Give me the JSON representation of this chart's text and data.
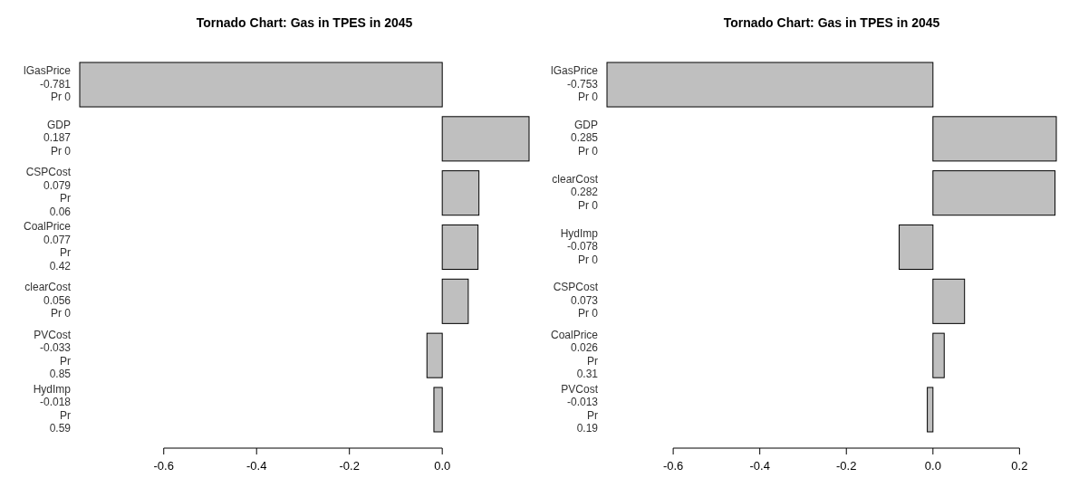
{
  "chart_data": [
    {
      "type": "bar",
      "orientation": "horizontal",
      "title": "Tornado Chart: Gas in TPES in  2045",
      "categories": [
        "lGasPrice\n-0.781\nPr 0",
        "GDP\n0.187\nPr 0",
        "CSPCost\n0.079\nPr\n0.06",
        "CoalPrice\n0.077\nPr\n0.42",
        "clearCost\n0.056\nPr 0",
        "PVCost\n-0.033\nPr\n0.85",
        "HydImp\n-0.018\nPr\n0.59"
      ],
      "values": [
        -0.781,
        0.187,
        0.079,
        0.077,
        0.056,
        -0.033,
        -0.018
      ],
      "color": "#bfbfbf",
      "xlim": [
        -0.781,
        0.187
      ],
      "xticks": [
        -0.6,
        -0.4,
        -0.2,
        {
          "value": 0,
          "label": "0.0"
        }
      ]
    },
    {
      "type": "bar",
      "orientation": "horizontal",
      "title": "Tornado Chart: Gas in TPES in  2045",
      "categories": [
        "lGasPrice\n-0.753\nPr 0",
        "GDP\n0.285\nPr 0",
        "clearCost\n0.282\nPr 0",
        "HydImp\n-0.078\nPr 0",
        "CSPCost\n0.073\nPr 0",
        "CoalPrice\n0.026\nPr\n0.31",
        "PVCost\n-0.013\nPr\n0.19"
      ],
      "values": [
        -0.753,
        0.285,
        0.282,
        -0.078,
        0.073,
        0.026,
        -0.013
      ],
      "color": "#bfbfbf",
      "xlim": [
        -0.753,
        0.285
      ],
      "xticks": [
        -0.6,
        -0.4,
        -0.2,
        {
          "value": 0,
          "label": "0.0"
        },
        0.2
      ]
    }
  ]
}
